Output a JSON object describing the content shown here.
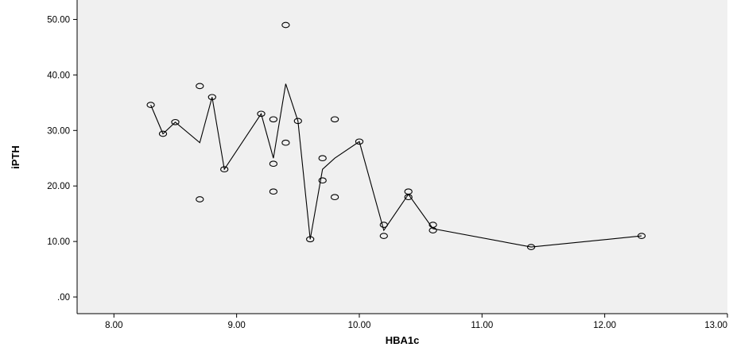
{
  "chart_data": {
    "type": "scatter",
    "title": "",
    "xlabel": "HBA1c",
    "ylabel": "iPTH",
    "xlim": [
      7.7,
      13.0
    ],
    "ylim": [
      -3.0,
      53.5
    ],
    "x_ticks": [
      8.0,
      9.0,
      10.0,
      11.0,
      12.0,
      13.0
    ],
    "x_tick_labels": [
      "8.00",
      "9.00",
      "10.00",
      "11.00",
      "12.00",
      "13.00"
    ],
    "y_ticks": [
      0,
      10,
      20,
      30,
      40,
      50
    ],
    "y_tick_labels": [
      ".00",
      "10.00",
      "20.00",
      "30.00",
      "40.00",
      "50.00"
    ],
    "grid": false,
    "plot_background": "#f0f0f0",
    "line_color": "#000000",
    "marker": "open-circle",
    "points": [
      [
        8.3,
        34.6
      ],
      [
        8.4,
        29.4
      ],
      [
        8.5,
        31.5
      ],
      [
        8.7,
        38.0
      ],
      [
        8.7,
        17.6
      ],
      [
        8.8,
        36.0
      ],
      [
        8.9,
        23.0
      ],
      [
        9.2,
        33.0
      ],
      [
        9.3,
        32.0
      ],
      [
        9.3,
        24.0
      ],
      [
        9.3,
        19.0
      ],
      [
        9.4,
        49.0
      ],
      [
        9.4,
        27.8
      ],
      [
        9.5,
        31.7
      ],
      [
        9.6,
        10.4
      ],
      [
        9.7,
        25.0
      ],
      [
        9.7,
        21.0
      ],
      [
        9.8,
        32.0
      ],
      [
        9.8,
        18.0
      ],
      [
        10.0,
        28.0
      ],
      [
        10.2,
        13.0
      ],
      [
        10.2,
        11.0
      ],
      [
        10.4,
        19.0
      ],
      [
        10.4,
        18.0
      ],
      [
        10.6,
        13.0
      ],
      [
        10.6,
        12.0
      ],
      [
        11.4,
        9.0
      ],
      [
        12.3,
        11.0
      ]
    ],
    "fit_line": [
      [
        8.3,
        34.6
      ],
      [
        8.4,
        29.4
      ],
      [
        8.5,
        31.5
      ],
      [
        8.7,
        27.8
      ],
      [
        8.8,
        36.0
      ],
      [
        8.9,
        23.0
      ],
      [
        9.2,
        33.0
      ],
      [
        9.3,
        25.0
      ],
      [
        9.4,
        38.4
      ],
      [
        9.5,
        31.7
      ],
      [
        9.6,
        10.4
      ],
      [
        9.7,
        23.0
      ],
      [
        9.8,
        25.0
      ],
      [
        10.0,
        28.0
      ],
      [
        10.2,
        12.0
      ],
      [
        10.4,
        18.5
      ],
      [
        10.6,
        12.3
      ],
      [
        11.4,
        9.0
      ],
      [
        12.3,
        11.0
      ]
    ]
  }
}
